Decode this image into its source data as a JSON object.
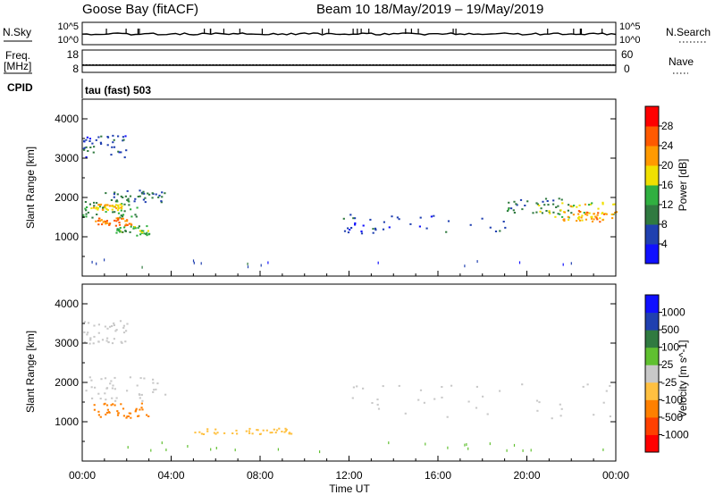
{
  "header": {
    "station": "Goose Bay (fitACF)",
    "beam_date": "Beam 10  18/May/2019 – 19/May/2019"
  },
  "top_panels": {
    "nsky_label": "N.Sky",
    "nsky_tick_top": "10^5",
    "nsky_tick_bottom": "10^0",
    "nsearch_label": "N.Search",
    "nsearch_tick_top": "10^5",
    "nsearch_tick_bottom": "10^0",
    "freq_label_1": "Freq.",
    "freq_label_2": "[MHz]",
    "freq_tick_top": "18",
    "freq_tick_bottom": "8",
    "nave_label": "Nave",
    "nave_tick_top": "60",
    "nave_tick_bottom": "0",
    "cpid_label": "CPID",
    "cpid_value": "tau (fast) 503"
  },
  "colors": {
    "power": [
      "#1010ff",
      "#2040b0",
      "#307a40",
      "#30b040",
      "#f0e000",
      "#ff9a00",
      "#ff5a00",
      "#ff0000"
    ],
    "velocity": [
      "#ff0000",
      "#ff4000",
      "#ff8000",
      "#ffc040",
      "#c8c8c8",
      "#60c030",
      "#307a40",
      "#2040b0",
      "#1010ff"
    ],
    "ground_scatter": "#c0c0c0"
  },
  "chart_data": [
    {
      "type": "heatmap",
      "title": "Power",
      "xlabel": "",
      "ylabel": "Slant Range [km]",
      "colorbar_label": "Power [dB]",
      "colorbar_ticks": [
        "4",
        "8",
        "12",
        "16",
        "20",
        "24",
        "28"
      ],
      "x_ticks": [],
      "y_ticks": [
        "1000",
        "2000",
        "3000",
        "4000"
      ],
      "ylim": [
        0,
        4500
      ],
      "xlim_hours": [
        0,
        24
      ],
      "features": [
        {
          "t_start": 0.0,
          "t_end": 2.5,
          "range_start": 1500,
          "range_end": 2000,
          "value": 12
        },
        {
          "t_start": 0.5,
          "t_end": 2.2,
          "range_start": 1300,
          "range_end": 1500,
          "value": 24
        },
        {
          "t_start": 0.3,
          "t_end": 1.8,
          "range_start": 1700,
          "range_end": 1850,
          "value": 20
        },
        {
          "t_start": 1.0,
          "t_end": 3.8,
          "range_start": 1900,
          "range_end": 2200,
          "value": 8
        },
        {
          "t_start": 1.5,
          "t_end": 3.0,
          "range_start": 1050,
          "range_end": 1300,
          "value": 14
        },
        {
          "t_start": 0.0,
          "t_end": 2.0,
          "range_start": 3000,
          "range_end": 3600,
          "value": 6
        },
        {
          "t_start": 11.5,
          "t_end": 19.0,
          "range_start": 1100,
          "range_end": 1600,
          "value": 6
        },
        {
          "t_start": 19.0,
          "t_end": 22.0,
          "range_start": 1600,
          "range_end": 2000,
          "value": 10
        },
        {
          "t_start": 20.5,
          "t_end": 24.0,
          "range_start": 1500,
          "range_end": 1900,
          "value": 18
        },
        {
          "t_start": 21.5,
          "t_end": 24.0,
          "range_start": 1400,
          "range_end": 1700,
          "value": 22
        },
        {
          "t_start": 0.0,
          "t_end": 24.0,
          "range_start": 250,
          "range_end": 450,
          "value": 6
        }
      ]
    },
    {
      "type": "heatmap",
      "title": "Velocity",
      "xlabel": "Time UT",
      "ylabel": "Slant Range [km]",
      "colorbar_label": "Velocity [m s^-1]",
      "colorbar_ticks": [
        "-1000",
        "-500",
        "-100",
        "-25",
        "25",
        "100",
        "500",
        "1000"
      ],
      "x_ticks": [
        "00:00",
        "04:00",
        "08:00",
        "12:00",
        "16:00",
        "20:00",
        "00:00"
      ],
      "y_ticks": [
        "1000",
        "2000",
        "3000",
        "4000"
      ],
      "ylim": [
        0,
        4500
      ],
      "xlim_hours": [
        0,
        24
      ],
      "features": [
        {
          "t_start": 0.0,
          "t_end": 3.8,
          "range_start": 1500,
          "range_end": 2200,
          "value": 0
        },
        {
          "t_start": 0.5,
          "t_end": 3.0,
          "range_start": 1100,
          "range_end": 1500,
          "value": -300
        },
        {
          "t_start": 0.0,
          "t_end": 2.0,
          "range_start": 3000,
          "range_end": 3600,
          "value": 0
        },
        {
          "t_start": 11.5,
          "t_end": 24.0,
          "range_start": 1100,
          "range_end": 2000,
          "value": 0
        },
        {
          "t_start": 5.0,
          "t_end": 9.5,
          "range_start": 700,
          "range_end": 850,
          "value": -60
        },
        {
          "t_start": 0.0,
          "t_end": 24.0,
          "range_start": 250,
          "range_end": 500,
          "value": 50
        }
      ]
    }
  ]
}
